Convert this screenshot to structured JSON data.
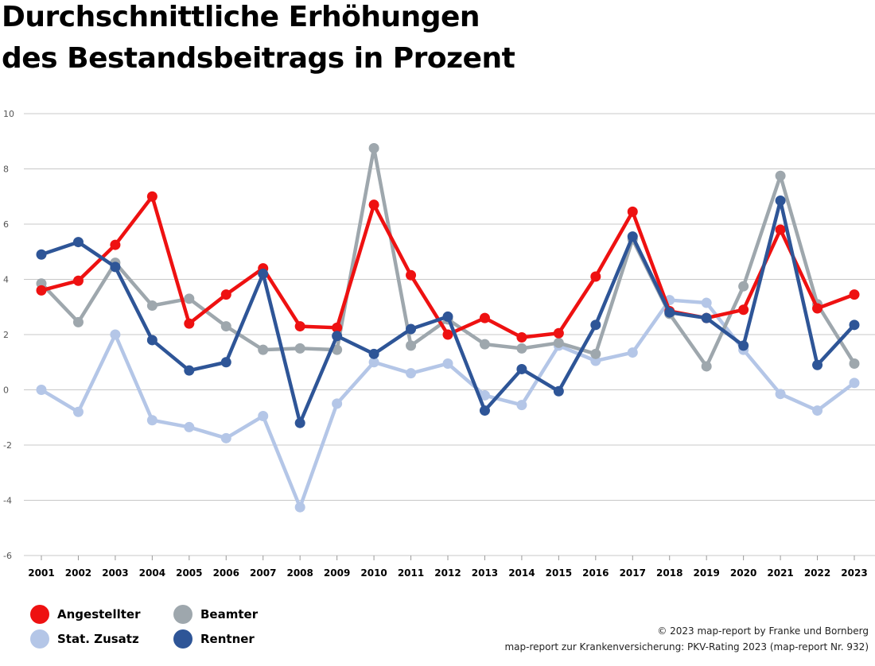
{
  "title_line1": "Durchschnittliche Erhöhungen",
  "title_line2": "des Bestandsbeitrags in Prozent",
  "credits": {
    "line1": "© 2023 map-report by Franke und Bornberg",
    "line2": "map-report zur Krankenversicherung: PKV-Rating 2023 (map-report Nr. 932)"
  },
  "chart_data": {
    "type": "line",
    "title": "Durchschnittliche Erhöhungen des Bestandsbeitrags in Prozent",
    "xlabel": "",
    "ylabel": "",
    "ylim": [
      -6,
      10
    ],
    "yticks": [
      "10",
      "8",
      "6",
      "4",
      "2",
      "0",
      "-2",
      "-4",
      "-6"
    ],
    "ytick_values": [
      10,
      8,
      6,
      4,
      2,
      0,
      -2,
      -4,
      -6
    ],
    "grid": true,
    "legend_position": "bottom-left",
    "categories": [
      "2001",
      "2002",
      "2003",
      "2004",
      "2005",
      "2006",
      "2007",
      "2008",
      "2009",
      "2010",
      "2011",
      "2012",
      "2013",
      "2014",
      "2015",
      "2016",
      "2017",
      "2018",
      "2019",
      "2020",
      "2021",
      "2022",
      "2023"
    ],
    "series": [
      {
        "name": "Stat. Zusatz",
        "color": "#b4c6e7",
        "values": [
          0.0,
          -0.8,
          2.0,
          -1.1,
          -1.35,
          -1.75,
          -0.95,
          -4.25,
          -0.5,
          1.0,
          0.6,
          0.95,
          -0.2,
          -0.55,
          1.6,
          1.05,
          1.35,
          3.25,
          3.15,
          1.45,
          -0.15,
          -0.75,
          0.25
        ]
      },
      {
        "name": "Beamter",
        "color": "#9ea7ad",
        "values": [
          3.85,
          2.45,
          4.6,
          3.05,
          3.3,
          2.3,
          1.45,
          1.5,
          1.45,
          8.75,
          1.6,
          2.55,
          1.65,
          1.5,
          1.7,
          1.3,
          5.45,
          2.75,
          0.85,
          3.75,
          7.75,
          3.1,
          0.95
        ]
      },
      {
        "name": "Angestellter",
        "color": "#ee1111",
        "values": [
          3.6,
          3.95,
          5.25,
          7.0,
          2.4,
          3.45,
          4.4,
          2.3,
          2.25,
          6.7,
          4.15,
          2.0,
          2.6,
          1.9,
          2.05,
          4.1,
          6.45,
          2.85,
          2.6,
          2.9,
          5.8,
          2.95,
          3.45
        ]
      },
      {
        "name": "Rentner",
        "color": "#2e5597",
        "values": [
          4.9,
          5.35,
          4.45,
          1.8,
          0.7,
          1.0,
          4.2,
          -1.2,
          1.95,
          1.3,
          2.2,
          2.65,
          -0.75,
          0.75,
          -0.05,
          2.35,
          5.55,
          2.8,
          2.6,
          1.6,
          6.85,
          0.9,
          2.35
        ]
      }
    ]
  },
  "legend": [
    {
      "label": "Angestellter",
      "color": "#ee1111"
    },
    {
      "label": "Beamter",
      "color": "#9ea7ad"
    },
    {
      "label": "Stat. Zusatz",
      "color": "#b4c6e7"
    },
    {
      "label": "Rentner",
      "color": "#2e5597"
    }
  ]
}
